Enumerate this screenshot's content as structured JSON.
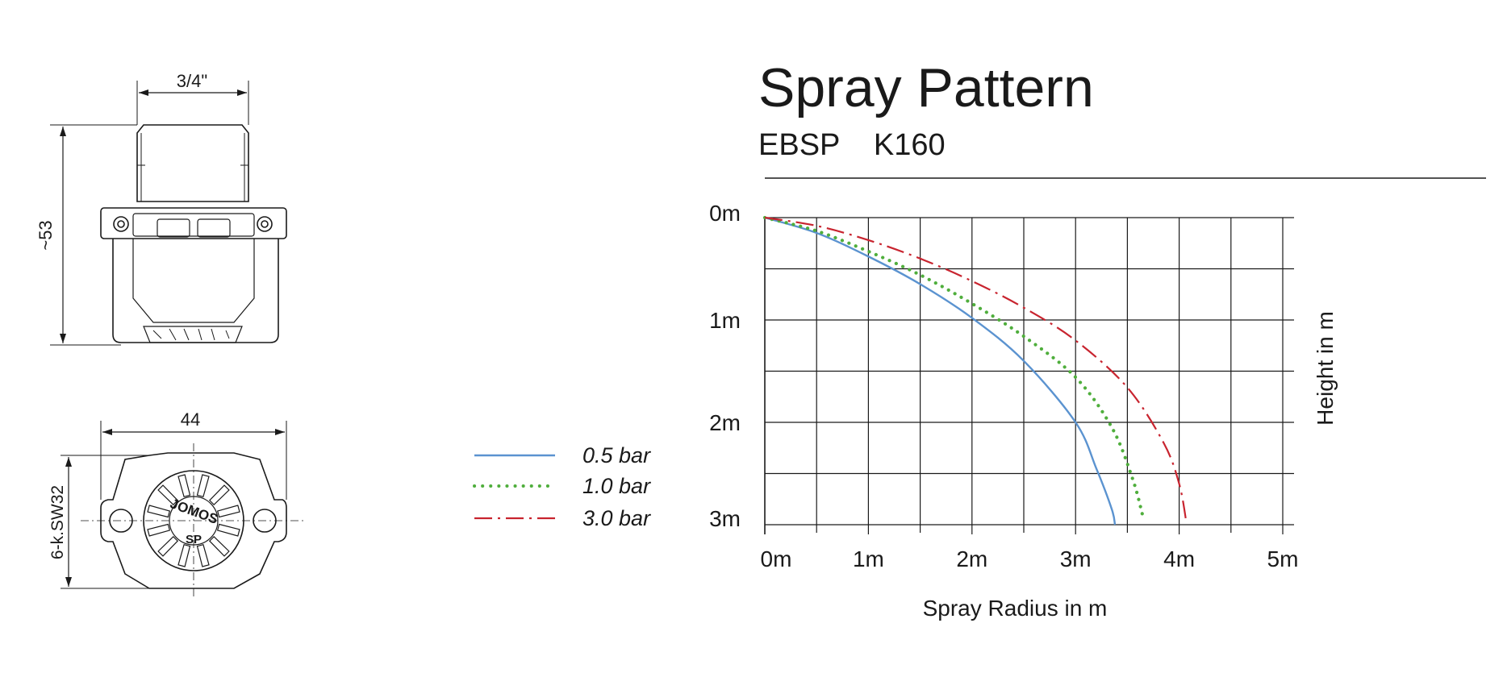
{
  "drawing": {
    "dim_thread": "3/4\"",
    "dim_height": "~53",
    "dim_width": "44",
    "dim_hex": "6-k.SW32",
    "logo_text": "JOMOS",
    "logo_sub": "SP"
  },
  "legend": {
    "items": [
      {
        "label": "0.5 bar",
        "color": "#5b93d0",
        "style": "solid"
      },
      {
        "label": "1.0 bar",
        "color": "#4fae3c",
        "style": "dotted"
      },
      {
        "label": "3.0 bar",
        "color": "#c8242f",
        "style": "dash-dot"
      }
    ]
  },
  "chart_data": {
    "type": "line",
    "title": "Spray Pattern",
    "subtitle": "EBSP    K160",
    "xlabel": "Spray Radius in m",
    "ylabel": "Height in m",
    "xlim": [
      0,
      5
    ],
    "ylim": [
      0,
      3
    ],
    "y_inverted": true,
    "x_tick_labels": [
      "0m",
      "1m",
      "2m",
      "3m",
      "4m",
      "5m"
    ],
    "y_tick_labels": [
      "0m",
      "1m",
      "2m",
      "3m"
    ],
    "grid": true,
    "series": [
      {
        "name": "0.5 bar",
        "color": "#5b93d0",
        "style": "solid",
        "x": [
          0,
          0.5,
          1.0,
          1.5,
          2.0,
          2.5,
          3.0,
          3.2,
          3.35,
          3.38
        ],
        "y": [
          0,
          0.15,
          0.38,
          0.65,
          0.98,
          1.4,
          2.0,
          2.45,
          2.85,
          3.0
        ]
      },
      {
        "name": "1.0 bar",
        "color": "#4fae3c",
        "style": "dotted",
        "x": [
          0,
          0.5,
          1.0,
          1.5,
          2.0,
          2.5,
          3.0,
          3.35,
          3.55,
          3.65
        ],
        "y": [
          0,
          0.13,
          0.33,
          0.56,
          0.84,
          1.16,
          1.56,
          2.05,
          2.55,
          2.92
        ]
      },
      {
        "name": "3.0 bar",
        "color": "#c8242f",
        "style": "dash-dot",
        "x": [
          0,
          0.5,
          1.0,
          1.5,
          2.0,
          2.5,
          3.0,
          3.5,
          3.85,
          4.0,
          4.07
        ],
        "y": [
          0,
          0.08,
          0.22,
          0.4,
          0.62,
          0.88,
          1.2,
          1.66,
          2.2,
          2.6,
          2.98
        ]
      }
    ]
  }
}
